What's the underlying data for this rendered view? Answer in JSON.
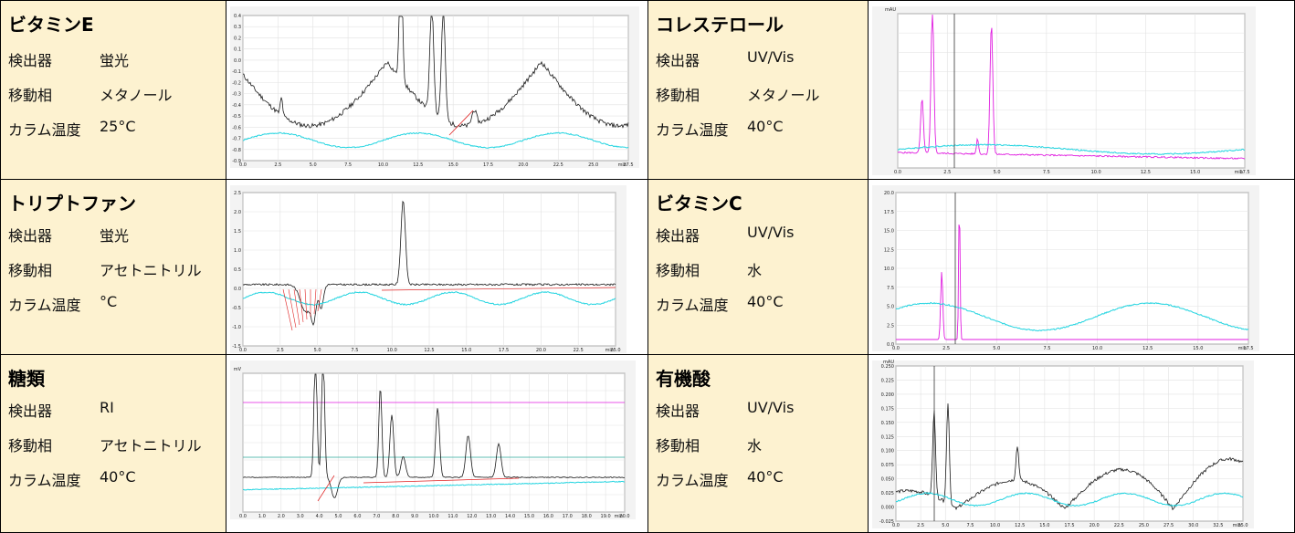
{
  "labels": {
    "detector": "検出器",
    "mobile_phase": "移動相",
    "column_temp": "カラム温度"
  },
  "samples": [
    {
      "name": "ビタミンE",
      "detector": "蛍光",
      "mobile_phase": "メタノール",
      "column_temp": "25°C"
    },
    {
      "name": "コレステロール",
      "detector": "UV/Vis",
      "mobile_phase": "メタノール",
      "column_temp": "40°C"
    },
    {
      "name": "トリプトファン",
      "detector": "蛍光",
      "mobile_phase": "アセトニトリル",
      "column_temp": "°C"
    },
    {
      "name": "ビタミンC",
      "detector": "UV/Vis",
      "mobile_phase": "水",
      "column_temp": "40°C"
    },
    {
      "name": "糖類",
      "detector": "RI",
      "mobile_phase": "アセトニトリル",
      "column_temp": "40°C"
    },
    {
      "name": "有機酸",
      "detector": "UV/Vis",
      "mobile_phase": "水",
      "column_temp": "40°C"
    }
  ],
  "colors": {
    "info_bg": "#fdf2d0",
    "trace_black": "#1a1a1a",
    "trace_magenta": "#e01ee0",
    "trace_cyan": "#22d4e0",
    "baseline_red": "#e02020"
  },
  "chart_data": [
    {
      "type": "line",
      "sample": "ビタミンE",
      "x_ticks": [
        "0.0",
        "2.5",
        "5.0",
        "7.5",
        "10.0",
        "12.5",
        "15.0",
        "17.5",
        "20.0",
        "22.5",
        "25.0",
        "27.5"
      ],
      "x_unit": "min",
      "y_ticks": [
        "0.4",
        "0.3",
        "0.2",
        "0.1",
        "0.0",
        "-0.1",
        "-0.2",
        "-0.3",
        "-0.4",
        "-0.5",
        "-0.6",
        "-0.7",
        "-0.8",
        "-0.9"
      ]
    },
    {
      "type": "line",
      "sample": "コレステロール",
      "x_ticks": [
        "0.0",
        "2.5",
        "5.0",
        "7.5",
        "10.0",
        "12.5",
        "15.0",
        "17.5"
      ],
      "x_unit": "min",
      "y_unit": "mAU"
    },
    {
      "type": "line",
      "sample": "トリプトファン",
      "x_ticks": [
        "0.0",
        "2.5",
        "5.0",
        "7.5",
        "10.0",
        "12.5",
        "15.0",
        "17.5",
        "20.0",
        "22.5",
        "25.0"
      ],
      "x_unit": "min",
      "y_ticks": [
        "2.5",
        "2.0",
        "1.5",
        "1.0",
        "0.5",
        "0.0",
        "-0.5",
        "-1.0",
        "-1.5"
      ]
    },
    {
      "type": "line",
      "sample": "ビタミンC",
      "x_ticks": [
        "0.0",
        "2.5",
        "5.0",
        "7.5",
        "10.0",
        "12.5",
        "15.0",
        "17.5"
      ],
      "x_unit": "min",
      "y_ticks": [
        "20.0",
        "17.5",
        "15.0",
        "12.5",
        "10.0",
        "7.5",
        "5.0",
        "2.5",
        "0.0"
      ]
    },
    {
      "type": "line",
      "sample": "糖類",
      "x_ticks": [
        "0.0",
        "1.0",
        "2.0",
        "3.0",
        "4.0",
        "5.0",
        "6.0",
        "7.0",
        "8.0",
        "9.0",
        "10.0",
        "11.0",
        "12.0",
        "13.0",
        "14.0",
        "15.0",
        "16.0",
        "17.0",
        "18.0",
        "19.0",
        "20.0"
      ],
      "x_unit": "min",
      "y_unit": "mV"
    },
    {
      "type": "line",
      "sample": "有機酸",
      "x_ticks": [
        "0.0",
        "2.5",
        "5.0",
        "7.5",
        "10.0",
        "12.5",
        "15.0",
        "17.5",
        "20.0",
        "22.5",
        "25.0",
        "27.5",
        "30.0",
        "32.5",
        "35.0"
      ],
      "x_unit": "min",
      "y_unit": "mAU",
      "y_ticks": [
        "0.250",
        "0.225",
        "0.200",
        "0.175",
        "0.150",
        "0.125",
        "0.100",
        "0.075",
        "0.050",
        "0.025",
        "0.000",
        "-0.025"
      ]
    }
  ]
}
